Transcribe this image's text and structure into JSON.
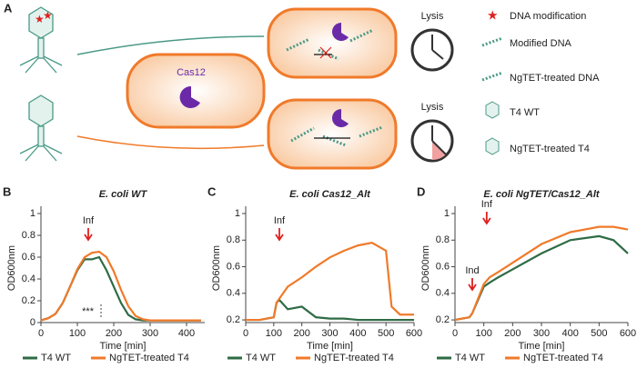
{
  "panel_labels": [
    "A",
    "B",
    "C",
    "D"
  ],
  "schematic": {
    "cas12_label": "Cas12",
    "lysis_labels": [
      "Lysis",
      "Lysis"
    ],
    "legend": [
      "DNA modification",
      "Modified DNA",
      "NgTET-treated DNA",
      "T4 WT",
      "NgTET-treated T4"
    ]
  },
  "chart_data": [
    {
      "type": "line",
      "title": "E. coli WT",
      "x_label": "Time [min]",
      "y_label": "OD600nm",
      "x": [
        0,
        20,
        40,
        60,
        80,
        100,
        120,
        140,
        160,
        180,
        200,
        220,
        240,
        260,
        280,
        300,
        340,
        380,
        420,
        440
      ],
      "series": [
        {
          "name": "T4 WT",
          "color": "#2e6b45",
          "values": [
            0.02,
            0.04,
            0.08,
            0.18,
            0.33,
            0.48,
            0.58,
            0.58,
            0.6,
            0.48,
            0.33,
            0.18,
            0.07,
            0.03,
            0.02,
            0.02,
            0.02,
            0.02,
            0.02,
            0.02
          ]
        },
        {
          "name": "NgTET-treated T4",
          "color": "#f07a2a",
          "values": [
            0.02,
            0.04,
            0.08,
            0.18,
            0.33,
            0.49,
            0.6,
            0.64,
            0.65,
            0.6,
            0.47,
            0.3,
            0.15,
            0.06,
            0.03,
            0.02,
            0.02,
            0.02,
            0.02,
            0.02
          ]
        }
      ],
      "xlim": [
        0,
        450
      ],
      "xticks": [
        0,
        100,
        200,
        300,
        400
      ],
      "ylim": [
        0,
        1
      ],
      "yticks": [
        0,
        0.2,
        0.4,
        0.6,
        0.8,
        1
      ],
      "annotations": [
        {
          "text": "Inf",
          "x": 130
        },
        {
          "text": "***",
          "x": 165
        }
      ]
    },
    {
      "type": "line",
      "title": "E. coli Cas12_Alt",
      "x_label": "Time [min]",
      "y_label": "OD600nm",
      "x": [
        0,
        50,
        100,
        110,
        120,
        150,
        200,
        250,
        300,
        350,
        400,
        450,
        500,
        520,
        550,
        600
      ],
      "series": [
        {
          "name": "T4 WT",
          "color": "#2e6b45",
          "values": [
            0.2,
            0.2,
            0.22,
            0.33,
            0.35,
            0.28,
            0.3,
            0.22,
            0.21,
            0.21,
            0.2,
            0.2,
            0.2,
            0.2,
            0.2,
            0.2
          ]
        },
        {
          "name": "NgTET-treated T4",
          "color": "#f07a2a",
          "values": [
            0.2,
            0.2,
            0.22,
            0.33,
            0.36,
            0.45,
            0.52,
            0.6,
            0.67,
            0.72,
            0.76,
            0.78,
            0.72,
            0.3,
            0.24,
            0.24
          ]
        }
      ],
      "xlim": [
        0,
        600
      ],
      "xticks": [
        0,
        100,
        200,
        300,
        400,
        500,
        600
      ],
      "ylim": [
        0.18,
        1
      ],
      "yticks": [
        0.2,
        0.4,
        0.6,
        0.8,
        1
      ],
      "annotations": [
        {
          "text": "Inf",
          "x": 120
        }
      ]
    },
    {
      "type": "line",
      "title": "E. coli NgTET/Cas12_Alt",
      "x_label": "Time [min]",
      "y_label": "OD600nm",
      "x": [
        0,
        50,
        60,
        100,
        120,
        150,
        200,
        300,
        400,
        500,
        550,
        600
      ],
      "series": [
        {
          "name": "T4 WT",
          "color": "#2e6b45",
          "values": [
            0.2,
            0.22,
            0.25,
            0.45,
            0.48,
            0.52,
            0.58,
            0.7,
            0.8,
            0.83,
            0.8,
            0.7
          ]
        },
        {
          "name": "NgTET-treated T4",
          "color": "#f07a2a",
          "values": [
            0.2,
            0.22,
            0.25,
            0.47,
            0.52,
            0.56,
            0.63,
            0.77,
            0.86,
            0.9,
            0.9,
            0.88
          ]
        }
      ],
      "xlim": [
        0,
        600
      ],
      "xticks": [
        0,
        100,
        200,
        300,
        400,
        500,
        600
      ],
      "ylim": [
        0.18,
        1
      ],
      "yticks": [
        0.2,
        0.4,
        0.6,
        0.8,
        1
      ],
      "annotations": [
        {
          "text": "Ind",
          "x": 60
        },
        {
          "text": "Inf",
          "x": 110
        }
      ]
    }
  ]
}
